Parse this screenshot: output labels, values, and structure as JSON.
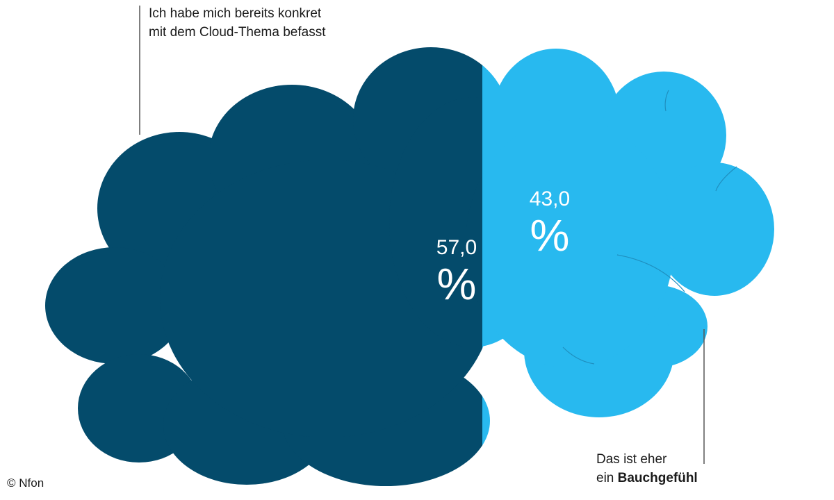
{
  "chart_data": {
    "type": "pie",
    "title": "",
    "categories": [
      "Ich habe mich bereits konkret mit dem Cloud-Thema befasst",
      "Das ist eher ein Bauchgefühl"
    ],
    "values": [
      57.0,
      43.0
    ],
    "value_labels": [
      {
        "number": "57,0",
        "unit": "%"
      },
      {
        "number": "43,0",
        "unit": "%"
      }
    ],
    "colors": [
      "#044b6b",
      "#28b9ef"
    ],
    "annotations": {
      "top_line1": "Ich habe mich bereits konkret",
      "top_line2": "mit dem Cloud-Thema befasst",
      "bottom_line1": "Das ist eher",
      "bottom_line2_prefix": "ein ",
      "bottom_line2_bold": "Bauchgefühl"
    },
    "shape": "cloud split vertically into two halves"
  },
  "credit": "© Nfon"
}
